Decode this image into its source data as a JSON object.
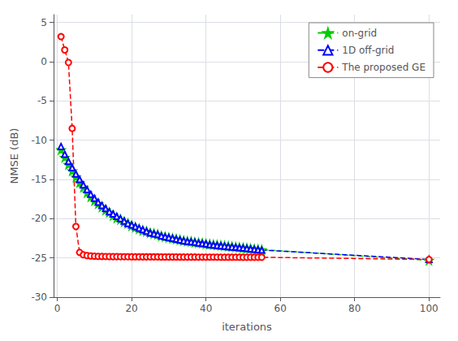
{
  "chart_data": {
    "type": "line",
    "xlabel": "iterations",
    "ylabel": "NMSE (dB)",
    "xlim": [
      -1,
      103
    ],
    "ylim": [
      -30,
      6
    ],
    "xticks": [
      0,
      20,
      40,
      60,
      80,
      100
    ],
    "yticks": [
      -30,
      -25,
      -20,
      -15,
      -10,
      -5,
      0,
      5
    ],
    "grid": true,
    "legend": "upper right",
    "x": [
      1,
      2,
      3,
      4,
      5,
      6,
      7,
      8,
      9,
      10,
      11,
      12,
      13,
      14,
      15,
      16,
      17,
      18,
      19,
      20,
      21,
      22,
      23,
      24,
      25,
      26,
      27,
      28,
      29,
      30,
      31,
      32,
      33,
      34,
      35,
      36,
      37,
      38,
      39,
      40,
      41,
      42,
      43,
      44,
      45,
      46,
      47,
      48,
      49,
      50,
      51,
      52,
      53,
      54,
      55,
      100
    ],
    "series": [
      {
        "name": "on-grid",
        "color": "#00CC00",
        "marker": "star",
        "line_style": "dashed",
        "values": [
          -11.2,
          -12.2,
          -13.1,
          -13.9,
          -14.7,
          -15.4,
          -16.0,
          -16.7,
          -17.2,
          -17.7,
          -18.1,
          -18.5,
          -18.9,
          -19.2,
          -19.6,
          -19.9,
          -20.1,
          -20.4,
          -20.6,
          -20.9,
          -21.1,
          -21.3,
          -21.5,
          -21.6,
          -21.8,
          -21.9,
          -22.0,
          -22.2,
          -22.3,
          -22.4,
          -22.5,
          -22.6,
          -22.7,
          -22.8,
          -22.85,
          -22.9,
          -23.0,
          -23.05,
          -23.1,
          -23.2,
          -23.25,
          -23.3,
          -23.35,
          -23.4,
          -23.45,
          -23.5,
          -23.55,
          -23.6,
          -23.65,
          -23.7,
          -23.75,
          -23.8,
          -23.85,
          -23.9,
          -23.95,
          -25.3
        ]
      },
      {
        "name": "1D off-grid",
        "color": "#0000FF",
        "marker": "triangle",
        "line_style": "dashed",
        "values": [
          -10.8,
          -11.8,
          -12.7,
          -13.5,
          -14.3,
          -15.0,
          -15.7,
          -16.3,
          -16.9,
          -17.4,
          -17.9,
          -18.3,
          -18.7,
          -19.1,
          -19.4,
          -19.7,
          -20.0,
          -20.3,
          -20.6,
          -20.8,
          -21.0,
          -21.2,
          -21.4,
          -21.6,
          -21.8,
          -21.9,
          -22.0,
          -22.2,
          -22.3,
          -22.4,
          -22.5,
          -22.6,
          -22.7,
          -22.8,
          -22.9,
          -22.95,
          -23.0,
          -23.1,
          -23.15,
          -23.2,
          -23.3,
          -23.35,
          -23.4,
          -23.45,
          -23.5,
          -23.55,
          -23.6,
          -23.65,
          -23.7,
          -23.75,
          -23.8,
          -23.85,
          -23.9,
          -23.95,
          -24.0,
          -25.2
        ]
      },
      {
        "name": "The proposed GE",
        "color": "#FF0000",
        "marker": "circle",
        "line_style": "dashed",
        "values": [
          3.2,
          1.5,
          -0.1,
          -8.5,
          -21.0,
          -24.3,
          -24.6,
          -24.7,
          -24.75,
          -24.78,
          -24.8,
          -24.81,
          -24.82,
          -24.83,
          -24.84,
          -24.84,
          -24.85,
          -24.85,
          -24.85,
          -24.86,
          -24.86,
          -24.86,
          -24.87,
          -24.87,
          -24.87,
          -24.87,
          -24.87,
          -24.88,
          -24.88,
          -24.88,
          -24.88,
          -24.88,
          -24.89,
          -24.89,
          -24.89,
          -24.89,
          -24.89,
          -24.9,
          -24.9,
          -24.9,
          -24.9,
          -24.9,
          -24.9,
          -24.91,
          -24.91,
          -24.91,
          -24.91,
          -24.91,
          -24.91,
          -24.92,
          -24.92,
          -24.92,
          -24.92,
          -24.92,
          -24.92,
          -25.2
        ]
      }
    ]
  }
}
